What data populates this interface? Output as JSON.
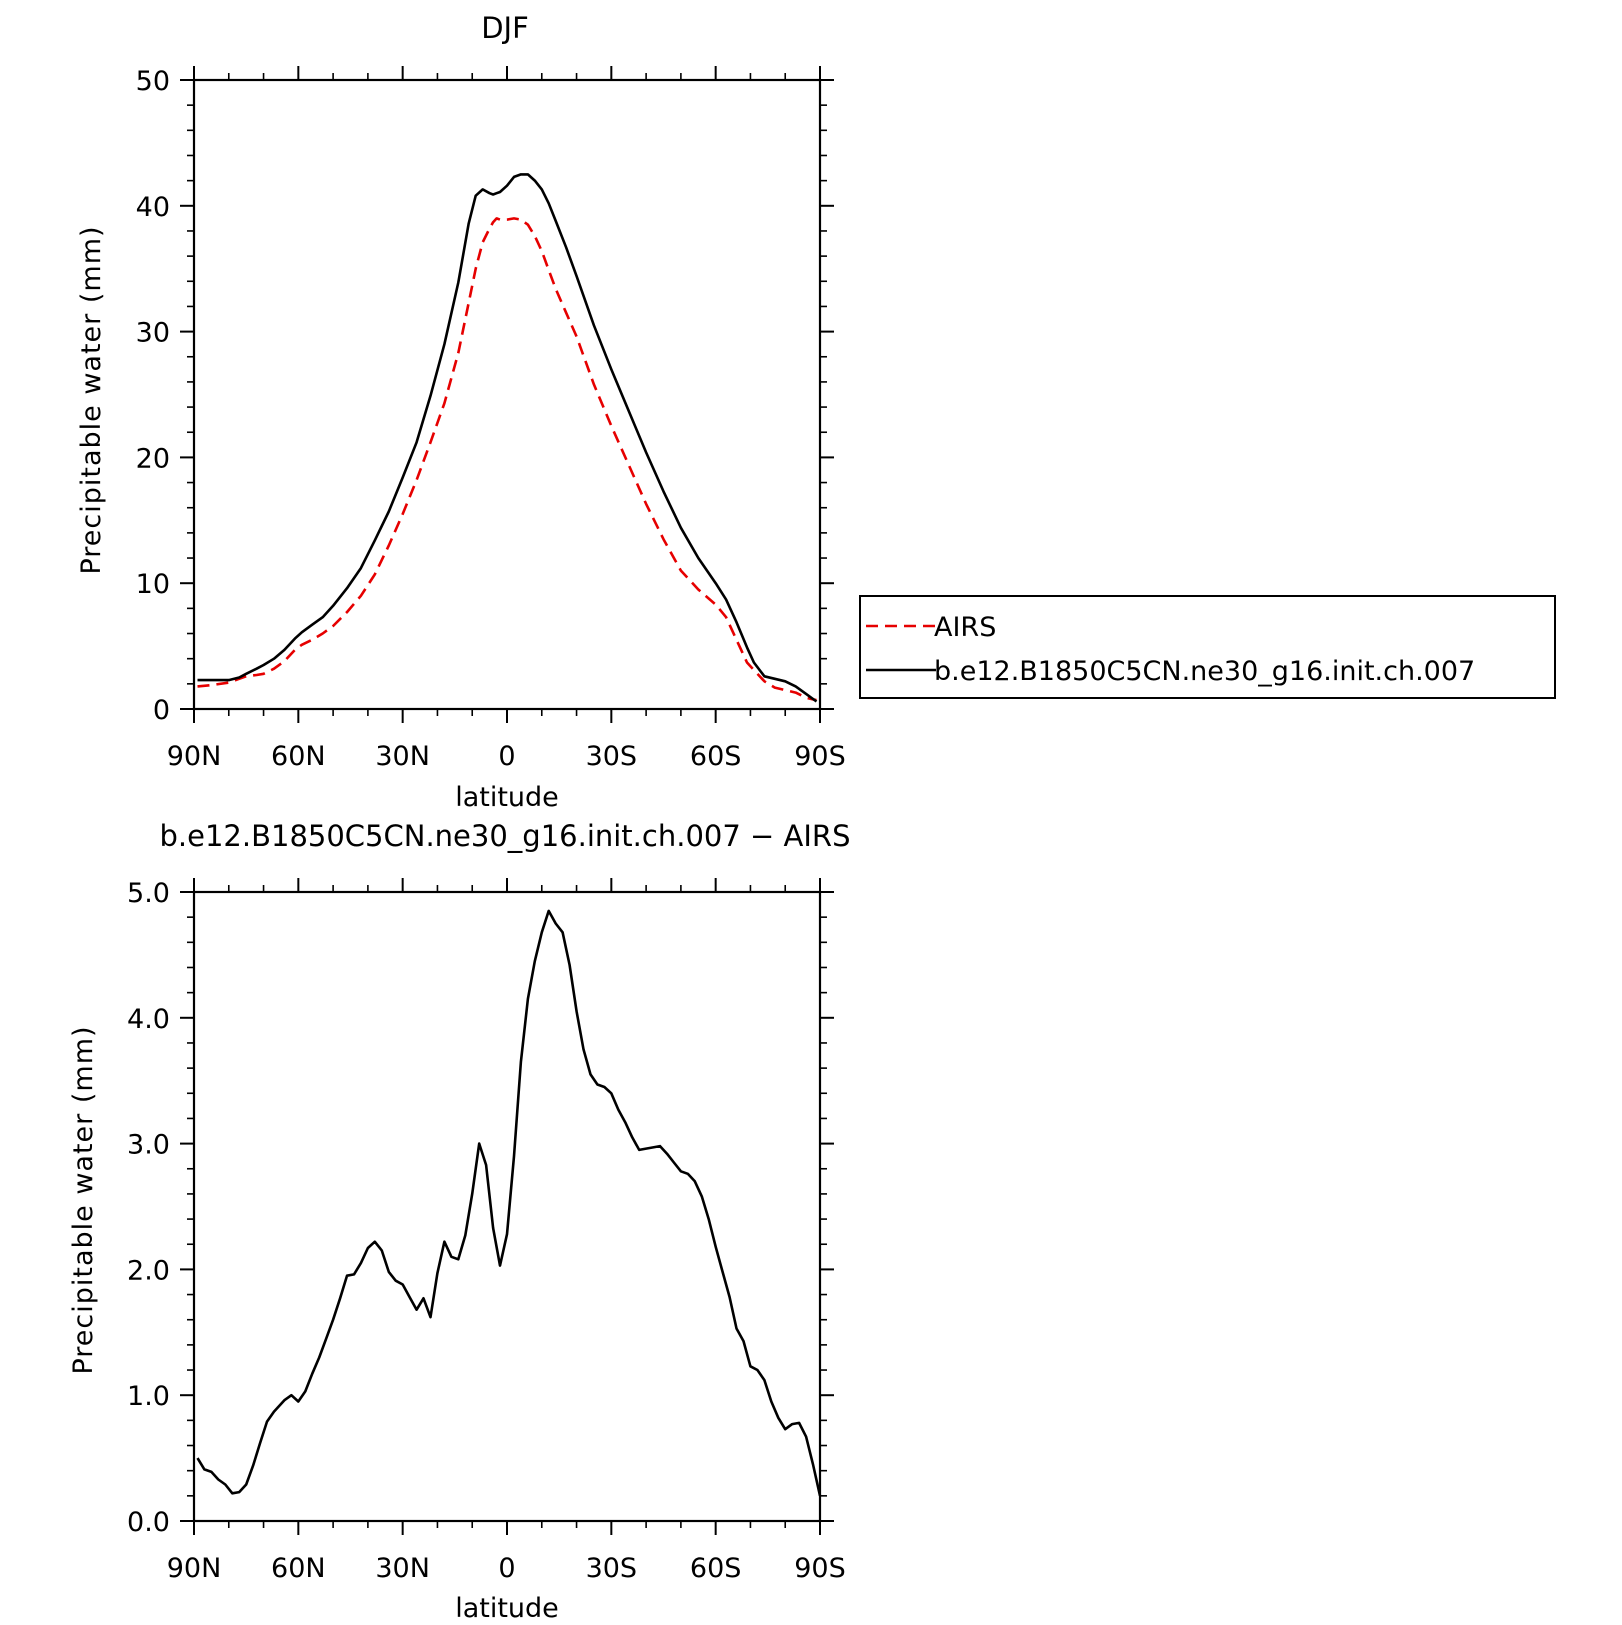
{
  "chart_data": [
    {
      "type": "line",
      "title": "DJF",
      "xlabel": "latitude",
      "ylabel": "Precipitable water (mm)",
      "xlim": [
        -90,
        90
      ],
      "ylim": [
        0,
        50
      ],
      "xticks": [
        -90,
        -60,
        -30,
        0,
        30,
        60,
        90
      ],
      "xticklabels": [
        "90N",
        "60N",
        "30N",
        "0",
        "30S",
        "60S",
        "90S"
      ],
      "yticks": [
        0,
        10,
        20,
        30,
        40,
        50
      ],
      "yticklabels": [
        "0",
        "10",
        "20",
        "30",
        "40",
        "50"
      ],
      "grid": false,
      "legend": "right",
      "series": [
        {
          "name": "AIRS",
          "color": "#e60000",
          "dash": "dashed",
          "x": [
            -89,
            -85,
            -80,
            -77,
            -75,
            -72,
            -70,
            -67,
            -64,
            -61,
            -59,
            -56,
            -53,
            -50,
            -46,
            -42,
            -38,
            -34,
            -30,
            -26,
            -22,
            -18,
            -14,
            -11,
            -9,
            -7,
            -5,
            -4,
            -3,
            -2,
            0,
            2,
            4,
            6,
            8,
            10,
            12,
            14,
            17,
            20,
            25,
            30,
            35,
            40,
            45,
            50,
            55,
            60,
            63,
            66,
            69,
            71,
            74,
            77,
            80,
            83,
            86,
            89
          ],
          "y": [
            1.8,
            1.9,
            2.1,
            2.4,
            2.6,
            2.7,
            2.8,
            3.2,
            3.8,
            4.7,
            5.1,
            5.5,
            6.0,
            6.6,
            7.7,
            9.0,
            10.7,
            13.0,
            15.5,
            18.2,
            21.2,
            24.3,
            28.3,
            32.3,
            35.0,
            37.1,
            38.2,
            38.7,
            39.0,
            38.9,
            38.9,
            39.0,
            38.9,
            38.5,
            37.6,
            36.4,
            34.9,
            33.4,
            31.5,
            29.6,
            25.8,
            22.5,
            19.4,
            16.3,
            13.5,
            11.0,
            9.5,
            8.3,
            7.3,
            5.5,
            3.7,
            3.1,
            2.2,
            1.7,
            1.5,
            1.3,
            0.9,
            0.7
          ]
        },
        {
          "name": "b.e12.B1850C5CN.ne30_g16.init.ch.007",
          "color": "#000000",
          "dash": "solid",
          "x": [
            -89,
            -85,
            -80,
            -77,
            -75,
            -72,
            -70,
            -67,
            -64,
            -61,
            -59,
            -56,
            -53,
            -50,
            -46,
            -42,
            -38,
            -34,
            -30,
            -26,
            -22,
            -18,
            -14,
            -11,
            -9,
            -7,
            -5,
            -4,
            -3,
            -2,
            0,
            2,
            4,
            6,
            8,
            10,
            12,
            14,
            17,
            20,
            25,
            30,
            35,
            40,
            45,
            50,
            55,
            60,
            63,
            66,
            69,
            71,
            74,
            77,
            80,
            83,
            86,
            89
          ],
          "y": [
            2.3,
            2.3,
            2.3,
            2.5,
            2.8,
            3.2,
            3.5,
            4.0,
            4.7,
            5.6,
            6.1,
            6.7,
            7.3,
            8.2,
            9.6,
            11.2,
            13.4,
            15.7,
            18.4,
            21.2,
            24.9,
            29.0,
            33.9,
            38.6,
            40.8,
            41.3,
            41.0,
            40.9,
            41.0,
            41.1,
            41.6,
            42.3,
            42.5,
            42.5,
            42.0,
            41.3,
            40.2,
            38.8,
            36.7,
            34.4,
            30.5,
            27.0,
            23.7,
            20.4,
            17.3,
            14.4,
            12.0,
            10.0,
            8.7,
            6.9,
            4.9,
            3.7,
            2.6,
            2.4,
            2.2,
            1.8,
            1.2,
            0.6
          ]
        }
      ]
    },
    {
      "type": "line",
      "title": "b.e12.B1850C5CN.ne30_g16.init.ch.007 − AIRS",
      "xlabel": "latitude",
      "ylabel": "Precipitable water (mm)",
      "xlim": [
        -90,
        90
      ],
      "ylim": [
        0,
        5
      ],
      "xticks": [
        -90,
        -60,
        -30,
        0,
        30,
        60,
        90
      ],
      "xticklabels": [
        "90N",
        "60N",
        "30N",
        "0",
        "30S",
        "60S",
        "90S"
      ],
      "yticks": [
        0,
        1,
        2,
        3,
        4,
        5
      ],
      "yticklabels": [
        "0.0",
        "1.0",
        "2.0",
        "3.0",
        "4.0",
        "5.0"
      ],
      "grid": false,
      "series": [
        {
          "color": "#000000",
          "dash": "solid",
          "x": [
            -89,
            -87,
            -85,
            -83,
            -81,
            -79,
            -77,
            -75,
            -73,
            -71,
            -69,
            -67,
            -64,
            -62,
            -60,
            -58,
            -56,
            -54,
            -52,
            -50,
            -48,
            -46,
            -44,
            -42,
            -40,
            -38,
            -36,
            -34,
            -32,
            -30,
            -28,
            -26,
            -24,
            -22,
            -20,
            -18,
            -16,
            -14,
            -12,
            -10,
            -8,
            -6,
            -4,
            -2,
            0,
            2,
            4,
            6,
            8,
            10,
            12,
            14,
            16,
            18,
            20,
            22,
            24,
            26,
            28,
            30,
            32,
            34,
            36,
            38,
            40,
            42,
            44,
            46,
            48,
            50,
            52,
            54,
            56,
            58,
            60,
            62,
            64,
            66,
            68,
            70,
            72,
            74,
            76,
            78,
            80,
            82,
            84,
            86,
            88,
            90
          ],
          "y": [
            0.5,
            0.41,
            0.39,
            0.33,
            0.29,
            0.22,
            0.23,
            0.29,
            0.44,
            0.62,
            0.79,
            0.87,
            0.96,
            1.0,
            0.95,
            1.03,
            1.17,
            1.3,
            1.45,
            1.6,
            1.77,
            1.95,
            1.96,
            2.05,
            2.17,
            2.22,
            2.15,
            1.98,
            1.91,
            1.88,
            1.78,
            1.68,
            1.77,
            1.62,
            1.97,
            2.22,
            2.1,
            2.08,
            2.27,
            2.6,
            3.0,
            2.83,
            2.33,
            2.03,
            2.28,
            2.9,
            3.65,
            4.15,
            4.45,
            4.68,
            4.85,
            4.75,
            4.68,
            4.42,
            4.05,
            3.75,
            3.55,
            3.47,
            3.45,
            3.4,
            3.27,
            3.17,
            3.05,
            2.95,
            2.96,
            2.97,
            2.98,
            2.92,
            2.85,
            2.78,
            2.76,
            2.7,
            2.58,
            2.4,
            2.18,
            1.98,
            1.78,
            1.53,
            1.43,
            1.23,
            1.2,
            1.12,
            0.95,
            0.82,
            0.73,
            0.77,
            0.78,
            0.67,
            0.45,
            0.2
          ]
        }
      ]
    }
  ]
}
